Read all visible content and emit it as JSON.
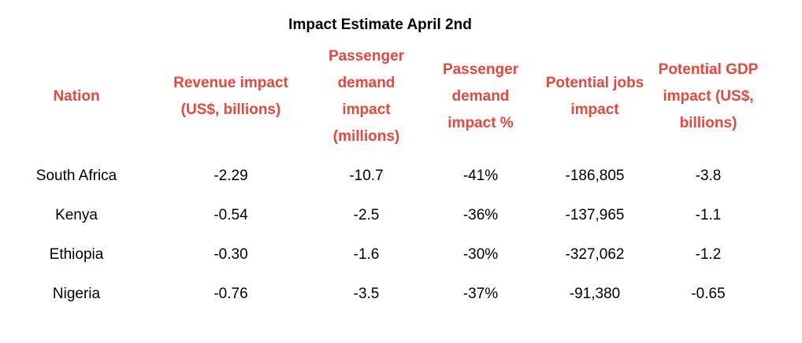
{
  "title": "Impact Estimate April 2nd",
  "header_color": "#e8473b",
  "columns": [
    {
      "label": "Nation",
      "lines": [
        "Nation"
      ]
    },
    {
      "label": "Revenue impact (US$, billions)",
      "lines": [
        "Revenue impact",
        "(US$, billions)"
      ]
    },
    {
      "label": "Passenger demand impact (millions)",
      "lines": [
        "Passenger",
        "demand",
        "impact",
        "(millions)"
      ]
    },
    {
      "label": "Passenger demand impact %",
      "lines": [
        "Passenger",
        "demand",
        "impact %"
      ]
    },
    {
      "label": "Potential jobs impact",
      "lines": [
        "Potential jobs",
        "impact"
      ]
    },
    {
      "label": "Potential GDP impact (US$, billions)",
      "lines": [
        "Potential GDP",
        "impact (US$,",
        "billions)"
      ]
    }
  ],
  "rows": [
    {
      "nation": "South Africa",
      "revenue": "-2.29",
      "demand_millions": "-10.7",
      "demand_pct": "-41%",
      "jobs": "-186,805",
      "gdp": "-3.8"
    },
    {
      "nation": "Kenya",
      "revenue": "-0.54",
      "demand_millions": "-2.5",
      "demand_pct": "-36%",
      "jobs": "-137,965",
      "gdp": "-1.1"
    },
    {
      "nation": "Ethiopia",
      "revenue": "-0.30",
      "demand_millions": "-1.6",
      "demand_pct": "-30%",
      "jobs": "-327,062",
      "gdp": "-1.2"
    },
    {
      "nation": "Nigeria",
      "revenue": "-0.76",
      "demand_millions": "-3.5",
      "demand_pct": "-37%",
      "jobs": "-91,380",
      "gdp": "-0.65"
    }
  ]
}
